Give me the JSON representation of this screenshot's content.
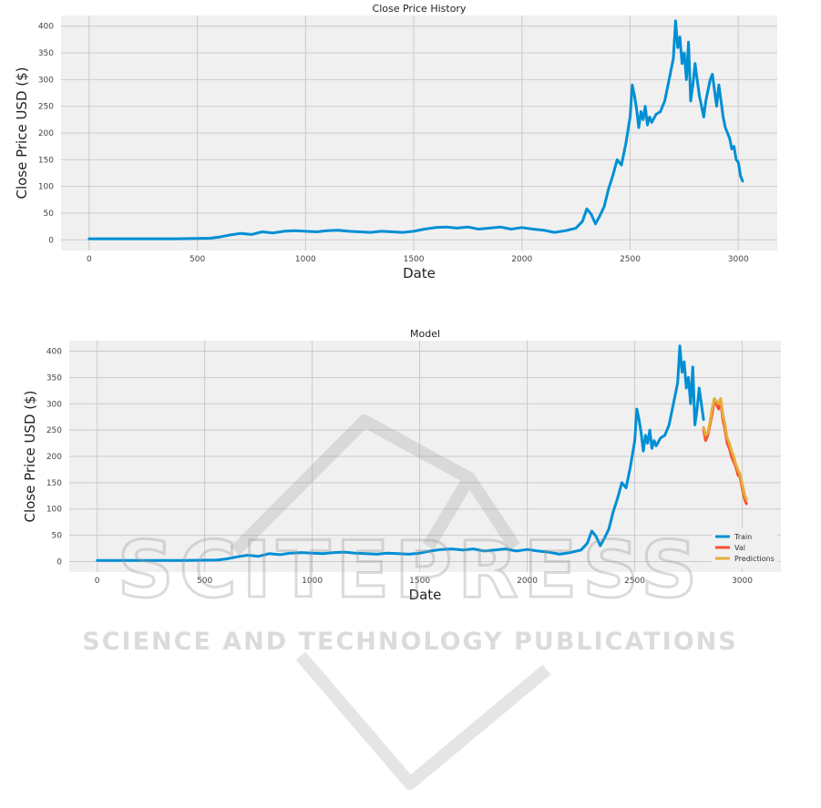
{
  "chart_data": [
    {
      "type": "line",
      "title": "Close Price History",
      "xlabel": "Date",
      "ylabel": "Close Price USD ($)",
      "xlim": [
        -130,
        3180
      ],
      "ylim": [
        -20,
        420
      ],
      "xticks": [
        0,
        500,
        1000,
        1500,
        2000,
        2500,
        3000
      ],
      "yticks": [
        0,
        50,
        100,
        150,
        200,
        250,
        300,
        350,
        400
      ],
      "grid": true,
      "legend": null,
      "series": [
        {
          "name": "",
          "color": "#008fd5",
          "x": [
            0,
            200,
            400,
            560,
            600,
            650,
            700,
            750,
            800,
            850,
            900,
            950,
            1000,
            1050,
            1100,
            1150,
            1200,
            1250,
            1300,
            1350,
            1400,
            1450,
            1500,
            1550,
            1600,
            1650,
            1700,
            1750,
            1800,
            1850,
            1900,
            1950,
            2000,
            2050,
            2100,
            2150,
            2200,
            2250,
            2280,
            2300,
            2320,
            2340,
            2360,
            2380,
            2400,
            2420,
            2440,
            2460,
            2480,
            2500,
            2510,
            2520,
            2530,
            2540,
            2550,
            2560,
            2570,
            2580,
            2590,
            2600,
            2620,
            2640,
            2660,
            2680,
            2700,
            2710,
            2720,
            2730,
            2740,
            2750,
            2760,
            2770,
            2780,
            2790,
            2800,
            2810,
            2820,
            2830,
            2840,
            2850,
            2860,
            2870,
            2880,
            2890,
            2900,
            2910,
            2920,
            2930,
            2940,
            2950,
            2960,
            2970,
            2980,
            2990,
            3000,
            3010,
            3020
          ],
          "values": [
            2,
            2,
            2,
            3,
            5,
            9,
            12,
            10,
            15,
            13,
            16,
            17,
            16,
            15,
            17,
            18,
            16,
            15,
            14,
            16,
            15,
            14,
            16,
            20,
            23,
            24,
            22,
            24,
            20,
            22,
            24,
            20,
            23,
            20,
            18,
            14,
            17,
            22,
            35,
            58,
            48,
            30,
            45,
            62,
            95,
            120,
            150,
            140,
            180,
            230,
            290,
            270,
            245,
            210,
            240,
            225,
            250,
            215,
            230,
            220,
            235,
            240,
            260,
            300,
            340,
            410,
            360,
            380,
            330,
            350,
            300,
            370,
            260,
            290,
            330,
            300,
            270,
            250,
            230,
            260,
            280,
            300,
            310,
            280,
            250,
            290,
            260,
            230,
            210,
            200,
            190,
            170,
            175,
            150,
            145,
            120,
            110
          ]
        }
      ]
    },
    {
      "type": "line",
      "title": "Model",
      "xlabel": "Date",
      "ylabel": "Close Price USD ($)",
      "xlim": [
        -130,
        3180
      ],
      "ylim": [
        -20,
        420
      ],
      "xticks": [
        0,
        500,
        1000,
        1500,
        2000,
        2500,
        3000
      ],
      "yticks": [
        0,
        50,
        100,
        150,
        200,
        250,
        300,
        350,
        400
      ],
      "grid": true,
      "legend": "lower-right",
      "series": [
        {
          "name": "Train",
          "color": "#008fd5",
          "x": [
            0,
            200,
            400,
            560,
            600,
            650,
            700,
            750,
            800,
            850,
            900,
            950,
            1000,
            1050,
            1100,
            1150,
            1200,
            1250,
            1300,
            1350,
            1400,
            1450,
            1500,
            1550,
            1600,
            1650,
            1700,
            1750,
            1800,
            1850,
            1900,
            1950,
            2000,
            2050,
            2100,
            2150,
            2200,
            2250,
            2280,
            2300,
            2320,
            2340,
            2360,
            2380,
            2400,
            2420,
            2440,
            2460,
            2480,
            2500,
            2510,
            2520,
            2530,
            2540,
            2550,
            2560,
            2570,
            2580,
            2590,
            2600,
            2620,
            2640,
            2660,
            2680,
            2700,
            2710,
            2720,
            2730,
            2740,
            2750,
            2760,
            2770,
            2780,
            2790,
            2800,
            2810,
            2820
          ],
          "values": [
            2,
            2,
            2,
            3,
            5,
            9,
            12,
            10,
            15,
            13,
            16,
            17,
            16,
            15,
            17,
            18,
            16,
            15,
            14,
            16,
            15,
            14,
            16,
            20,
            23,
            24,
            22,
            24,
            20,
            22,
            24,
            20,
            23,
            20,
            18,
            14,
            17,
            22,
            35,
            58,
            48,
            30,
            45,
            62,
            95,
            120,
            150,
            140,
            180,
            230,
            290,
            270,
            245,
            210,
            240,
            225,
            250,
            215,
            230,
            220,
            235,
            240,
            260,
            300,
            340,
            410,
            360,
            380,
            330,
            350,
            300,
            370,
            260,
            290,
            330,
            300,
            270
          ]
        },
        {
          "name": "Val",
          "color": "#fc4f30",
          "x": [
            2820,
            2830,
            2840,
            2850,
            2860,
            2870,
            2880,
            2890,
            2900,
            2910,
            2920,
            2930,
            2940,
            2950,
            2960,
            2970,
            2980,
            2990,
            3000,
            3010,
            3020
          ],
          "values": [
            250,
            230,
            240,
            260,
            280,
            305,
            300,
            290,
            305,
            270,
            250,
            225,
            215,
            200,
            190,
            180,
            165,
            160,
            140,
            120,
            110
          ]
        },
        {
          "name": "Predictions",
          "color": "#e5ae38",
          "x": [
            2820,
            2830,
            2840,
            2850,
            2860,
            2870,
            2880,
            2890,
            2900,
            2910,
            2920,
            2930,
            2940,
            2950,
            2960,
            2970,
            2980,
            2990,
            3000,
            3010,
            3020
          ],
          "values": [
            255,
            240,
            245,
            265,
            290,
            310,
            305,
            300,
            310,
            280,
            260,
            235,
            225,
            210,
            200,
            185,
            175,
            165,
            148,
            128,
            118
          ]
        }
      ]
    }
  ],
  "watermark": {
    "main": "SCITEPRESS",
    "sub": "SCIENCE AND TECHNOLOGY PUBLICATIONS"
  }
}
